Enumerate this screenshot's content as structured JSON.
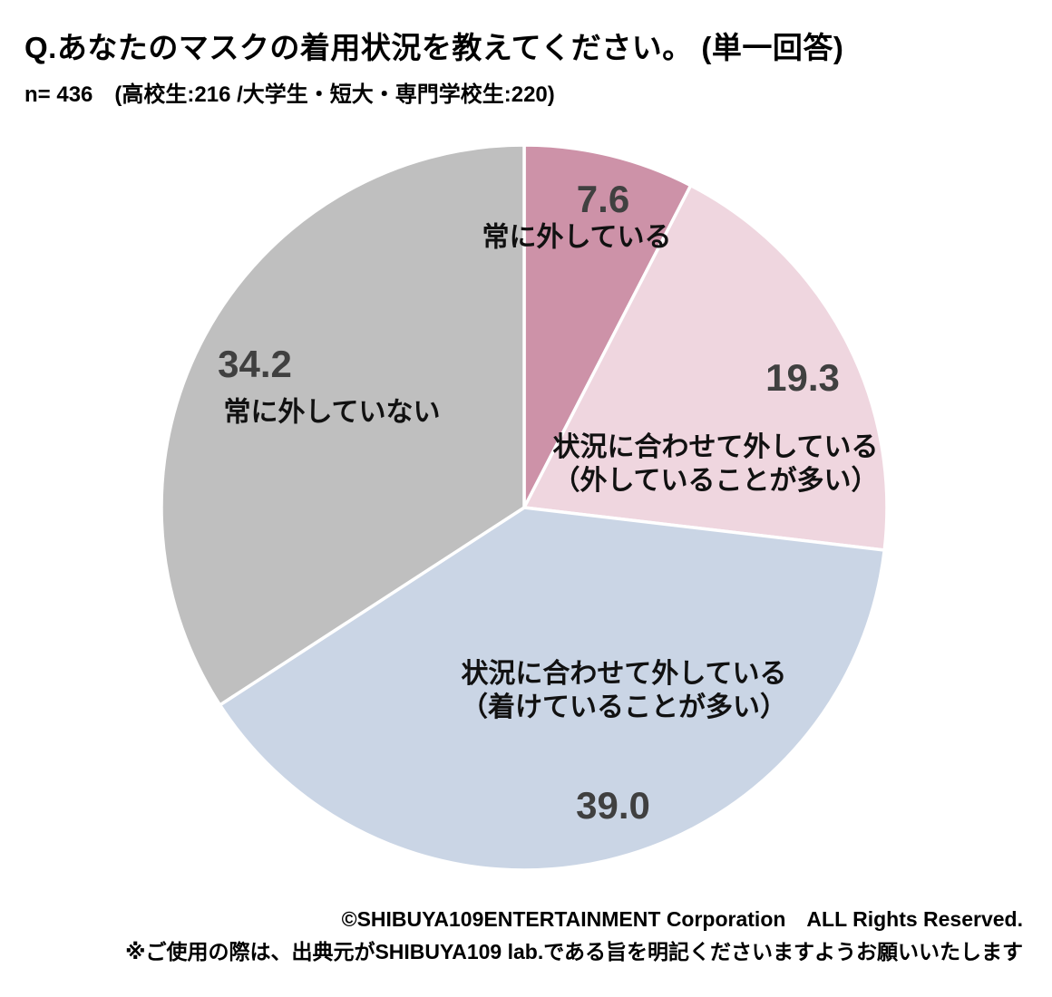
{
  "header": {
    "title": "Q.あなたのマスクの着用状況を教えてください。 (単一回答)",
    "sample_line": "n= 436　(高校生:216 /大学生・短大・専門学校生:220)"
  },
  "chart_data": {
    "type": "pie",
    "title": "Q.あなたのマスクの着用状況を教えてください。 (単一回答)",
    "n": 436,
    "n_breakdown": "高校生:216 /大学生・短大・専門学校生:220",
    "unit": "%",
    "start_angle": "12-oclock",
    "direction": "clockwise",
    "legend": "none",
    "slices": [
      {
        "label": "常に外している",
        "value": 7.6,
        "display_value": "7.6",
        "color": "#CD92A8",
        "label_lines": [
          "常に外している"
        ]
      },
      {
        "label": "状況に合わせて外している（外していることが多い）",
        "value": 19.3,
        "display_value": "19.3",
        "color": "#EFD6DF",
        "label_lines": [
          "状況に合わせて外している",
          "（外していることが多い）"
        ]
      },
      {
        "label": "状況に合わせて外している（着けていることが多い）",
        "value": 39.0,
        "display_value": "39.0",
        "color": "#CAD5E5",
        "label_lines": [
          "状況に合わせて外している",
          "（着けていることが多い）"
        ]
      },
      {
        "label": "常に外していない",
        "value": 34.2,
        "display_value": "34.2",
        "color": "#BFBFBF",
        "label_lines": [
          "常に外していない"
        ]
      }
    ],
    "colors": {
      "value_label": "#404040",
      "category_label": "#111111",
      "slice_border": "#FFFFFF",
      "background": "#FFFFFF"
    }
  },
  "footer": {
    "copyright": "©SHIBUYA109ENTERTAINMENT Corporation　ALL Rights Reserved.",
    "usage_note": "※ご使用の際は、出典元がSHIBUYA109 lab.である旨を明記くださいますようお願いいたします"
  }
}
